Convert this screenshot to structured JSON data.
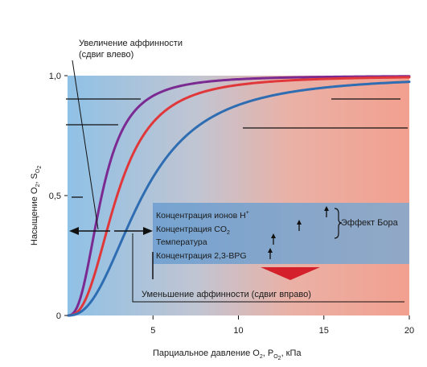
{
  "chart_data": {
    "type": "line",
    "xlabel_main": "Парциальное давление O",
    "xlabel_sub": "2",
    "xlabel_mid": ", P",
    "xlabel_psub": "O",
    "xlabel_psub2": "2",
    "xlabel_tail": ", кПа",
    "ylabel_main": "Насыщение O",
    "ylabel_sub": "2",
    "ylabel_mid": ", S",
    "ylabel_ssub": "O",
    "ylabel_ssub2": "2",
    "xlim": [
      0,
      20
    ],
    "ylim": [
      0,
      1.0
    ],
    "xticks": [
      {
        "v": 5,
        "label": "5"
      },
      {
        "v": 10,
        "label": "10"
      },
      {
        "v": 15,
        "label": "15"
      },
      {
        "v": 20,
        "label": "20"
      }
    ],
    "yticks": [
      {
        "v": 0,
        "label": "0"
      },
      {
        "v": 0.5,
        "label": "0,5"
      },
      {
        "v": 1.0,
        "label": "1,0"
      }
    ],
    "series": [
      {
        "color": "#7b2a92",
        "p50": 2.0,
        "n": 2.6
      },
      {
        "color": "#e0373a",
        "p50": 2.9,
        "n": 2.6
      },
      {
        "color": "#2f6db3",
        "p50": 4.4,
        "n": 2.4
      }
    ],
    "annotations": {
      "left_shift": "Увеличение аффинности",
      "left_shift_2": "(сдвиг влево)",
      "right_shift": "Уменьшение аффинности (сдвиг вправо)",
      "factors": [
        {
          "text": "Концентрация ионов H",
          "sup": "+",
          "sub": ""
        },
        {
          "text": "Концентрация CO",
          "sup": "",
          "sub": "2"
        },
        {
          "text": "Температура",
          "sup": "",
          "sub": ""
        },
        {
          "text": "Концентрация 2,3-BPG",
          "sup": "",
          "sub": ""
        }
      ],
      "bohr": "Эффект Бора"
    }
  }
}
